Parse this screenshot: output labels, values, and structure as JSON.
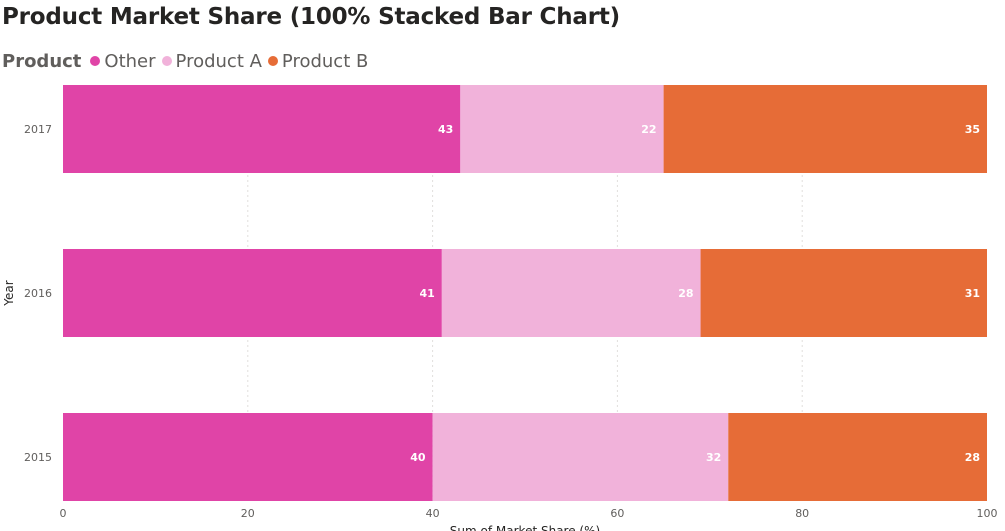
{
  "chart_data": {
    "type": "bar",
    "orientation": "horizontal",
    "stacked": "percent",
    "title": "Product Market Share (100% Stacked Bar Chart)",
    "legend_title": "Product",
    "legend_position": "top-left",
    "categories": [
      "2017",
      "2016",
      "2015"
    ],
    "series": [
      {
        "name": "Other",
        "color": "#e044a7",
        "values": [
          43,
          41,
          40
        ]
      },
      {
        "name": "Product A",
        "color": "#f1b2da",
        "values": [
          22,
          28,
          32
        ]
      },
      {
        "name": "Product B",
        "color": "#e66c37",
        "values": [
          35,
          31,
          28
        ]
      }
    ],
    "xlabel": "Sum of Market Share (%)",
    "ylabel": "Year",
    "xlim": [
      0,
      100
    ],
    "xticks": [
      "0",
      "20",
      "40",
      "60",
      "80",
      "100"
    ],
    "grid": true
  }
}
